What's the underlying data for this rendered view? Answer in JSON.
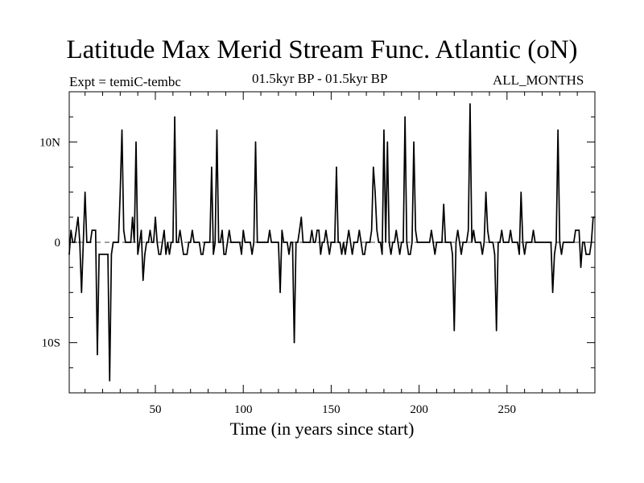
{
  "chart_data": {
    "type": "line",
    "title": "Latitude Max Merid Stream Func. Atlantic (oN)",
    "experiment": "Expt = temiC-tembc",
    "period": "01.5kyr BP - 01.5kyr BP",
    "season": "ALL_MONTHS",
    "xlabel": "Time (in years since start)",
    "ylabel": "",
    "xlim": [
      1,
      300
    ],
    "ylim": [
      -15,
      15
    ],
    "x_ticks": [
      50,
      100,
      150,
      200,
      250
    ],
    "y_ticks": [
      {
        "value": 10,
        "label": "10N"
      },
      {
        "value": 0,
        "label": "0"
      },
      {
        "value": -10,
        "label": "10S"
      }
    ],
    "reference_line": 0,
    "series": [
      {
        "name": "latitude",
        "x": [
          1,
          2,
          3,
          4,
          5,
          6,
          7,
          8,
          9,
          10,
          11,
          12,
          13,
          14,
          15,
          16,
          17,
          18,
          19,
          20,
          21,
          22,
          23,
          24,
          25,
          26,
          27,
          28,
          29,
          30,
          31,
          32,
          33,
          34,
          35,
          36,
          37,
          38,
          39,
          40,
          41,
          42,
          43,
          44,
          45,
          46,
          47,
          48,
          49,
          50,
          51,
          52,
          53,
          54,
          55,
          56,
          57,
          58,
          59,
          60,
          61,
          62,
          63,
          64,
          65,
          66,
          67,
          68,
          69,
          70,
          71,
          72,
          73,
          74,
          75,
          76,
          77,
          78,
          79,
          80,
          81,
          82,
          83,
          84,
          85,
          86,
          87,
          88,
          89,
          90,
          91,
          92,
          93,
          94,
          95,
          96,
          97,
          98,
          99,
          100,
          101,
          102,
          103,
          104,
          105,
          106,
          107,
          108,
          109,
          110,
          111,
          112,
          113,
          114,
          115,
          116,
          117,
          118,
          119,
          120,
          121,
          122,
          123,
          124,
          125,
          126,
          127,
          128,
          129,
          130,
          131,
          132,
          133,
          134,
          135,
          136,
          137,
          138,
          139,
          140,
          141,
          142,
          143,
          144,
          145,
          146,
          147,
          148,
          149,
          150,
          151,
          152,
          153,
          154,
          155,
          156,
          157,
          158,
          159,
          160,
          161,
          162,
          163,
          164,
          165,
          166,
          167,
          168,
          169,
          170,
          171,
          172,
          173,
          174,
          175,
          176,
          177,
          178,
          179,
          180,
          181,
          182,
          183,
          184,
          185,
          186,
          187,
          188,
          189,
          190,
          191,
          192,
          193,
          194,
          195,
          196,
          197,
          198,
          199,
          200,
          201,
          202,
          203,
          204,
          205,
          206,
          207,
          208,
          209,
          210,
          211,
          212,
          213,
          214,
          215,
          216,
          217,
          218,
          219,
          220,
          221,
          222,
          223,
          224,
          225,
          226,
          227,
          228,
          229,
          230,
          231,
          232,
          233,
          234,
          235,
          236,
          237,
          238,
          239,
          240,
          241,
          242,
          243,
          244,
          245,
          246,
          247,
          248,
          249,
          250,
          251,
          252,
          253,
          254,
          255,
          256,
          257,
          258,
          259,
          260,
          261,
          262,
          263,
          264,
          265,
          266,
          267,
          268,
          269,
          270,
          271,
          272,
          273,
          274,
          275,
          276,
          277,
          278,
          279,
          280,
          281,
          282,
          283,
          284,
          285,
          286,
          287,
          288,
          289,
          290,
          291,
          292,
          293,
          294,
          295,
          296,
          297,
          298,
          299,
          300
        ],
        "y": [
          -1.2,
          1.2,
          0,
          0,
          1.2,
          2.5,
          0,
          -5,
          0,
          5,
          0,
          0,
          0,
          1.2,
          1.2,
          1.2,
          -11.2,
          -1.2,
          -1.2,
          -1.2,
          -1.2,
          -1.2,
          -1.2,
          -13.8,
          -1.2,
          0,
          0,
          0,
          0,
          5,
          11.2,
          1.2,
          0,
          0,
          0,
          0,
          2.5,
          0,
          10,
          -1.2,
          0,
          1.2,
          -3.8,
          -1.2,
          0,
          0,
          1.2,
          0,
          0,
          2.5,
          0,
          -1.2,
          -1.2,
          0,
          1.2,
          -1.2,
          0,
          -1.2,
          0,
          0,
          12.5,
          0,
          0,
          1.2,
          0,
          -1.2,
          -1.2,
          -1.2,
          0,
          0,
          1.2,
          0,
          0,
          0,
          0,
          -1.2,
          -1.2,
          0,
          0,
          0,
          0,
          7.5,
          -1.2,
          0,
          11.2,
          0,
          0,
          1.2,
          -1.2,
          -1.2,
          0,
          1.2,
          0,
          0,
          0,
          0,
          0,
          0,
          -1.2,
          1.2,
          0,
          0,
          0,
          0,
          -1.2,
          0,
          10,
          0,
          0,
          0,
          0,
          0,
          0,
          0,
          1.2,
          0,
          0,
          0,
          0,
          0,
          -5,
          1.2,
          0,
          0,
          0,
          -1.2,
          0,
          0,
          -10,
          0,
          0,
          1.2,
          2.5,
          0,
          0,
          0,
          0,
          0,
          1.2,
          0,
          0,
          1.2,
          1.2,
          -1.2,
          0,
          0,
          1.2,
          0,
          -1.2,
          0,
          0,
          0,
          7.5,
          0,
          0,
          -1.2,
          0,
          -1.2,
          0,
          1.2,
          0,
          -1.2,
          0,
          0,
          0,
          1.2,
          0,
          -1.2,
          -1.2,
          0,
          0,
          0,
          1.2,
          7.5,
          5,
          1.2,
          0,
          0,
          -1.2,
          11.2,
          0,
          10,
          0,
          -1.2,
          0,
          0,
          1.2,
          0,
          -1.2,
          0,
          0,
          12.5,
          0,
          -1.2,
          -1.2,
          0,
          10,
          1.2,
          0,
          0,
          0,
          0,
          0,
          0,
          0,
          0,
          1.2,
          0,
          -1.2,
          0,
          0,
          0,
          0,
          3.8,
          0,
          0,
          0,
          0,
          -1.2,
          -8.8,
          0,
          1.2,
          0,
          -1.2,
          0,
          0,
          0,
          1.2,
          13.8,
          0,
          1.2,
          0,
          0,
          0,
          0,
          -1.2,
          0,
          5,
          1.2,
          0,
          0,
          0,
          -1.2,
          -8.8,
          0,
          0,
          1.2,
          0,
          0,
          0,
          0,
          1.2,
          0,
          0,
          0,
          0,
          -1.2,
          5,
          0,
          -1.2,
          0,
          0,
          0,
          0,
          1.2,
          0,
          0,
          0,
          0,
          0,
          0,
          0,
          0,
          0,
          0,
          -5,
          -1.2,
          0,
          11.2,
          0,
          -1.2,
          0,
          0,
          0,
          0,
          0,
          0,
          0,
          1.2,
          1.2,
          1.2,
          -2.5,
          0,
          0,
          -1.2,
          -1.2,
          -1.2,
          0,
          2.5,
          2.5
        ]
      }
    ]
  }
}
